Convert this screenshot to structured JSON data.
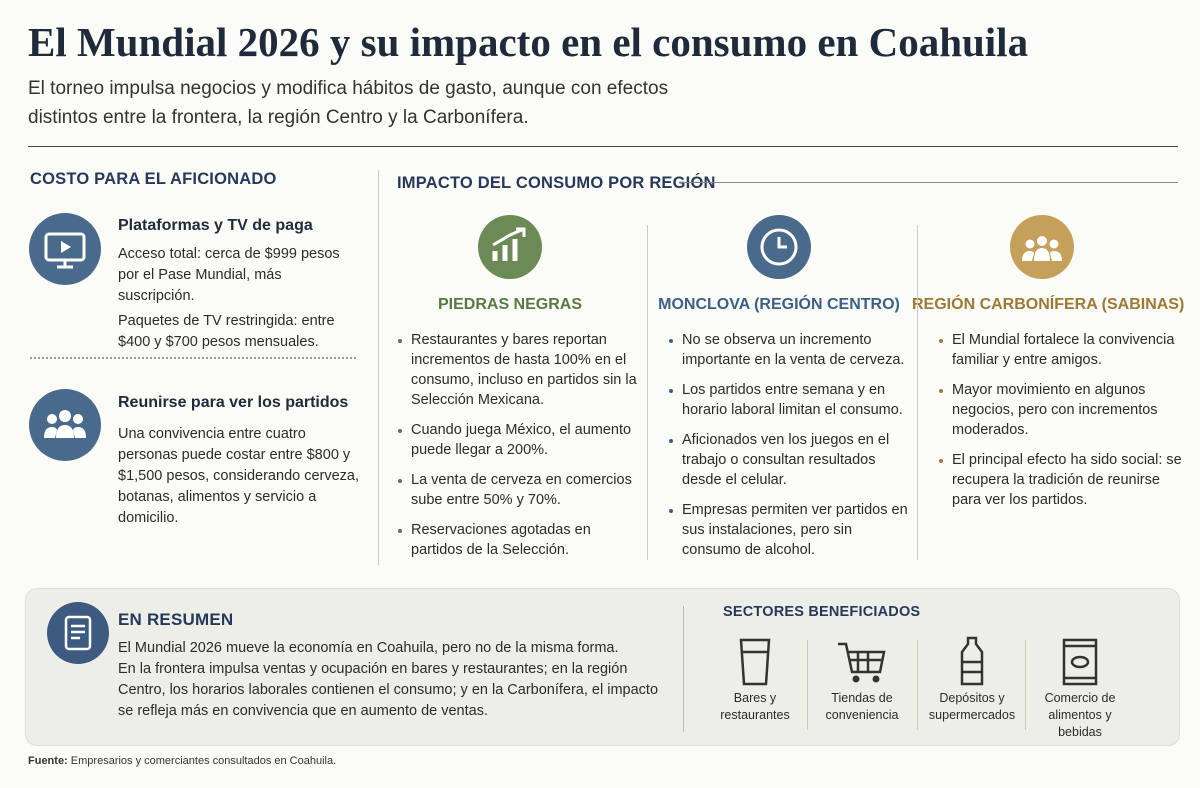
{
  "header": {
    "title": "El Mundial 2026 y su impacto en el consumo en Coahuila",
    "subtitle": "El torneo impulsa negocios y modifica hábitos de gasto, aunque con efectos distintos entre la frontera, la región Centro y la Carbonífera."
  },
  "cost": {
    "heading": "COSTO PARA EL AFICIONADO",
    "items": [
      {
        "title": "Plataformas y TV de paga",
        "paragraphs": [
          "Acceso total: cerca de $999 pesos por el Pase Mundial, más suscripción.",
          "Paquetes de TV restringida: entre $400 y $700 pesos mensuales."
        ]
      },
      {
        "title": "Reunirse para ver los partidos",
        "paragraphs": [
          "Una convivencia entre cuatro personas puede costar entre $800 y $1,500 pesos, considerando cerveza, botanas, alimentos y servicio a domicilio."
        ]
      }
    ]
  },
  "impact": {
    "heading": "IMPACTO DEL CONSUMO POR REGIÓN",
    "regions": [
      {
        "name": "PIEDRAS NEGRAS",
        "bullets": [
          "Restaurantes y bares reportan incrementos de hasta 100% en el consumo, incluso en partidos sin la Selección Mexicana.",
          "Cuando juega México, el aumento puede llegar a 200%.",
          "La venta de cerveza en comercios sube entre 50% y 70%.",
          "Reservaciones agotadas en partidos de la Selección."
        ]
      },
      {
        "name": "MONCLOVA (REGIÓN CENTRO)",
        "bullets": [
          "No se observa un incremento importante en la venta de cerveza.",
          "Los partidos entre semana y en horario laboral limitan el consumo.",
          "Aficionados ven los juegos en el trabajo o consultan resultados desde el celular.",
          "Empresas permiten ver partidos en sus instalaciones, pero sin consumo de alcohol."
        ]
      },
      {
        "name": "REGIÓN CARBONÍFERA (SABINAS)",
        "bullets": [
          "El Mundial fortalece la convivencia familiar y entre amigos.",
          "Mayor movimiento en algunos negocios, pero con incrementos moderados.",
          "El principal efecto ha sido social: se recupera la tradición de reunirse para ver los partidos."
        ]
      }
    ]
  },
  "summary": {
    "heading": "EN RESUMEN",
    "paragraphs": [
      "El Mundial 2026 mueve la economía en Coahuila, pero no de la misma forma.",
      "En la frontera impulsa ventas y ocupación en bares y restaurantes; en la región Centro, los horarios laborales contienen el consumo; y en la Carbonífera, el impacto se refleja más en convivencia que en aumento de ventas."
    ]
  },
  "sectors": {
    "heading": "SECTORES BENEFICIADOS",
    "items": [
      "Bares y restaurantes",
      "Tiendas de conveniencia",
      "Depósitos y supermercados",
      "Comercio de alimentos y bebidas"
    ]
  },
  "footer": {
    "label": "Fuente:",
    "text": "Empresarios y comerciantes consultados en Coahuila."
  }
}
